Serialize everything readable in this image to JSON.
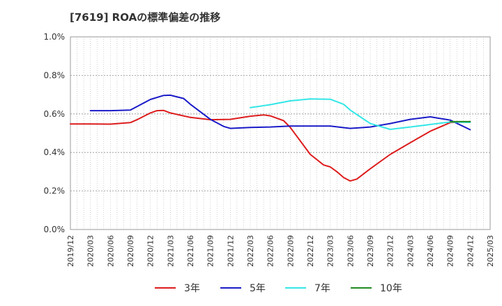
{
  "chart_data": {
    "type": "line",
    "title": "[7619]  ROAの標準偏差の推移",
    "xlabel": "",
    "ylabel": "",
    "ylim": [
      0,
      1.0
    ],
    "y_ticks": [
      "0.0%",
      "0.2%",
      "0.4%",
      "0.6%",
      "0.8%",
      "1.0%"
    ],
    "x_ticks": [
      "2019/12",
      "2020/03",
      "2020/06",
      "2020/09",
      "2020/12",
      "2021/03",
      "2021/06",
      "2021/09",
      "2021/12",
      "2022/03",
      "2022/06",
      "2022/09",
      "2022/12",
      "2023/03",
      "2023/06",
      "2023/09",
      "2023/12",
      "2024/03",
      "2024/06",
      "2024/09",
      "2024/12",
      "2025/03"
    ],
    "grid": true,
    "legend_position": "bottom",
    "series": [
      {
        "name": "3年",
        "color": "#dd1c1c",
        "points": [
          [
            "2019/12",
            0.548
          ],
          [
            "2020/03",
            0.548
          ],
          [
            "2020/06",
            0.547
          ],
          [
            "2020/09",
            0.555
          ],
          [
            "2020/10",
            0.57
          ],
          [
            "2020/12",
            0.605
          ],
          [
            "2021/01",
            0.617
          ],
          [
            "2021/02",
            0.618
          ],
          [
            "2021/03",
            0.605
          ],
          [
            "2021/06",
            0.582
          ],
          [
            "2021/09",
            0.57
          ],
          [
            "2021/12",
            0.572
          ],
          [
            "2022/03",
            0.588
          ],
          [
            "2022/05",
            0.595
          ],
          [
            "2022/06",
            0.59
          ],
          [
            "2022/08",
            0.565
          ],
          [
            "2022/09",
            0.53
          ],
          [
            "2022/12",
            0.39
          ],
          [
            "2023/02",
            0.335
          ],
          [
            "2023/03",
            0.325
          ],
          [
            "2023/04",
            0.3
          ],
          [
            "2023/05",
            0.27
          ],
          [
            "2023/06",
            0.252
          ],
          [
            "2023/07",
            0.262
          ],
          [
            "2023/09",
            0.315
          ],
          [
            "2023/12",
            0.39
          ],
          [
            "2024/03",
            0.45
          ],
          [
            "2024/06",
            0.51
          ],
          [
            "2024/09",
            0.555
          ],
          [
            "2024/12",
            0.56
          ]
        ]
      },
      {
        "name": "5年",
        "color": "#1a1ac8",
        "points": [
          [
            "2020/03",
            0.617
          ],
          [
            "2020/06",
            0.617
          ],
          [
            "2020/09",
            0.62
          ],
          [
            "2020/12",
            0.675
          ],
          [
            "2021/02",
            0.696
          ],
          [
            "2021/03",
            0.697
          ],
          [
            "2021/05",
            0.68
          ],
          [
            "2021/06",
            0.65
          ],
          [
            "2021/09",
            0.572
          ],
          [
            "2021/11",
            0.535
          ],
          [
            "2021/12",
            0.525
          ],
          [
            "2022/03",
            0.53
          ],
          [
            "2022/06",
            0.532
          ],
          [
            "2022/09",
            0.537
          ],
          [
            "2022/12",
            0.537
          ],
          [
            "2023/03",
            0.537
          ],
          [
            "2023/06",
            0.525
          ],
          [
            "2023/09",
            0.532
          ],
          [
            "2023/12",
            0.55
          ],
          [
            "2024/03",
            0.572
          ],
          [
            "2024/06",
            0.585
          ],
          [
            "2024/09",
            0.568
          ],
          [
            "2024/12",
            0.518
          ]
        ]
      },
      {
        "name": "7年",
        "color": "#33e6e6",
        "points": [
          [
            "2022/03",
            0.633
          ],
          [
            "2022/06",
            0.648
          ],
          [
            "2022/09",
            0.668
          ],
          [
            "2022/12",
            0.678
          ],
          [
            "2023/03",
            0.676
          ],
          [
            "2023/05",
            0.65
          ],
          [
            "2023/06",
            0.62
          ],
          [
            "2023/09",
            0.55
          ],
          [
            "2023/12",
            0.52
          ],
          [
            "2024/03",
            0.532
          ],
          [
            "2024/06",
            0.545
          ],
          [
            "2024/09",
            0.558
          ],
          [
            "2024/12",
            0.556
          ]
        ]
      },
      {
        "name": "10年",
        "color": "#228b22",
        "points": [
          [
            "2024/09",
            0.56
          ],
          [
            "2024/12",
            0.56
          ]
        ]
      }
    ]
  }
}
